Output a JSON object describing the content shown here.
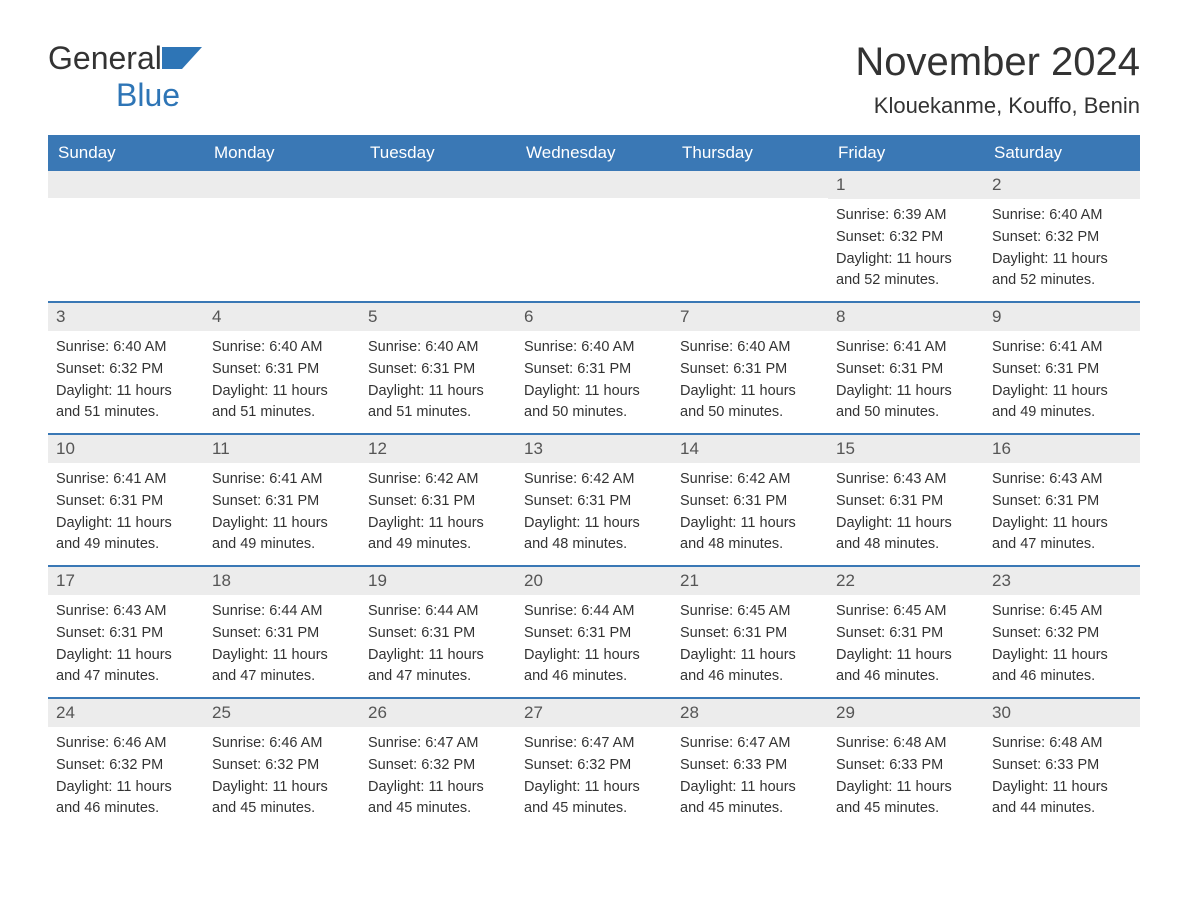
{
  "logo": {
    "text_general": "General",
    "text_blue": "Blue"
  },
  "title": "November 2024",
  "location": "Klouekanme, Kouffo, Benin",
  "colors": {
    "header_bg": "#3a78b5",
    "header_text": "#ffffff",
    "day_number_bg": "#ececec",
    "text": "#333333",
    "blue_accent": "#2e75b6",
    "row_border": "#3a78b5"
  },
  "weekdays": [
    "Sunday",
    "Monday",
    "Tuesday",
    "Wednesday",
    "Thursday",
    "Friday",
    "Saturday"
  ],
  "labels": {
    "sunrise": "Sunrise:",
    "sunset": "Sunset:",
    "daylight": "Daylight:"
  },
  "weeks": [
    [
      {
        "empty": true
      },
      {
        "empty": true
      },
      {
        "empty": true
      },
      {
        "empty": true
      },
      {
        "empty": true
      },
      {
        "day": "1",
        "sunrise": "6:39 AM",
        "sunset": "6:32 PM",
        "daylight": "11 hours and 52 minutes."
      },
      {
        "day": "2",
        "sunrise": "6:40 AM",
        "sunset": "6:32 PM",
        "daylight": "11 hours and 52 minutes."
      }
    ],
    [
      {
        "day": "3",
        "sunrise": "6:40 AM",
        "sunset": "6:32 PM",
        "daylight": "11 hours and 51 minutes."
      },
      {
        "day": "4",
        "sunrise": "6:40 AM",
        "sunset": "6:31 PM",
        "daylight": "11 hours and 51 minutes."
      },
      {
        "day": "5",
        "sunrise": "6:40 AM",
        "sunset": "6:31 PM",
        "daylight": "11 hours and 51 minutes."
      },
      {
        "day": "6",
        "sunrise": "6:40 AM",
        "sunset": "6:31 PM",
        "daylight": "11 hours and 50 minutes."
      },
      {
        "day": "7",
        "sunrise": "6:40 AM",
        "sunset": "6:31 PM",
        "daylight": "11 hours and 50 minutes."
      },
      {
        "day": "8",
        "sunrise": "6:41 AM",
        "sunset": "6:31 PM",
        "daylight": "11 hours and 50 minutes."
      },
      {
        "day": "9",
        "sunrise": "6:41 AM",
        "sunset": "6:31 PM",
        "daylight": "11 hours and 49 minutes."
      }
    ],
    [
      {
        "day": "10",
        "sunrise": "6:41 AM",
        "sunset": "6:31 PM",
        "daylight": "11 hours and 49 minutes."
      },
      {
        "day": "11",
        "sunrise": "6:41 AM",
        "sunset": "6:31 PM",
        "daylight": "11 hours and 49 minutes."
      },
      {
        "day": "12",
        "sunrise": "6:42 AM",
        "sunset": "6:31 PM",
        "daylight": "11 hours and 49 minutes."
      },
      {
        "day": "13",
        "sunrise": "6:42 AM",
        "sunset": "6:31 PM",
        "daylight": "11 hours and 48 minutes."
      },
      {
        "day": "14",
        "sunrise": "6:42 AM",
        "sunset": "6:31 PM",
        "daylight": "11 hours and 48 minutes."
      },
      {
        "day": "15",
        "sunrise": "6:43 AM",
        "sunset": "6:31 PM",
        "daylight": "11 hours and 48 minutes."
      },
      {
        "day": "16",
        "sunrise": "6:43 AM",
        "sunset": "6:31 PM",
        "daylight": "11 hours and 47 minutes."
      }
    ],
    [
      {
        "day": "17",
        "sunrise": "6:43 AM",
        "sunset": "6:31 PM",
        "daylight": "11 hours and 47 minutes."
      },
      {
        "day": "18",
        "sunrise": "6:44 AM",
        "sunset": "6:31 PM",
        "daylight": "11 hours and 47 minutes."
      },
      {
        "day": "19",
        "sunrise": "6:44 AM",
        "sunset": "6:31 PM",
        "daylight": "11 hours and 47 minutes."
      },
      {
        "day": "20",
        "sunrise": "6:44 AM",
        "sunset": "6:31 PM",
        "daylight": "11 hours and 46 minutes."
      },
      {
        "day": "21",
        "sunrise": "6:45 AM",
        "sunset": "6:31 PM",
        "daylight": "11 hours and 46 minutes."
      },
      {
        "day": "22",
        "sunrise": "6:45 AM",
        "sunset": "6:31 PM",
        "daylight": "11 hours and 46 minutes."
      },
      {
        "day": "23",
        "sunrise": "6:45 AM",
        "sunset": "6:32 PM",
        "daylight": "11 hours and 46 minutes."
      }
    ],
    [
      {
        "day": "24",
        "sunrise": "6:46 AM",
        "sunset": "6:32 PM",
        "daylight": "11 hours and 46 minutes."
      },
      {
        "day": "25",
        "sunrise": "6:46 AM",
        "sunset": "6:32 PM",
        "daylight": "11 hours and 45 minutes."
      },
      {
        "day": "26",
        "sunrise": "6:47 AM",
        "sunset": "6:32 PM",
        "daylight": "11 hours and 45 minutes."
      },
      {
        "day": "27",
        "sunrise": "6:47 AM",
        "sunset": "6:32 PM",
        "daylight": "11 hours and 45 minutes."
      },
      {
        "day": "28",
        "sunrise": "6:47 AM",
        "sunset": "6:33 PM",
        "daylight": "11 hours and 45 minutes."
      },
      {
        "day": "29",
        "sunrise": "6:48 AM",
        "sunset": "6:33 PM",
        "daylight": "11 hours and 45 minutes."
      },
      {
        "day": "30",
        "sunrise": "6:48 AM",
        "sunset": "6:33 PM",
        "daylight": "11 hours and 44 minutes."
      }
    ]
  ]
}
